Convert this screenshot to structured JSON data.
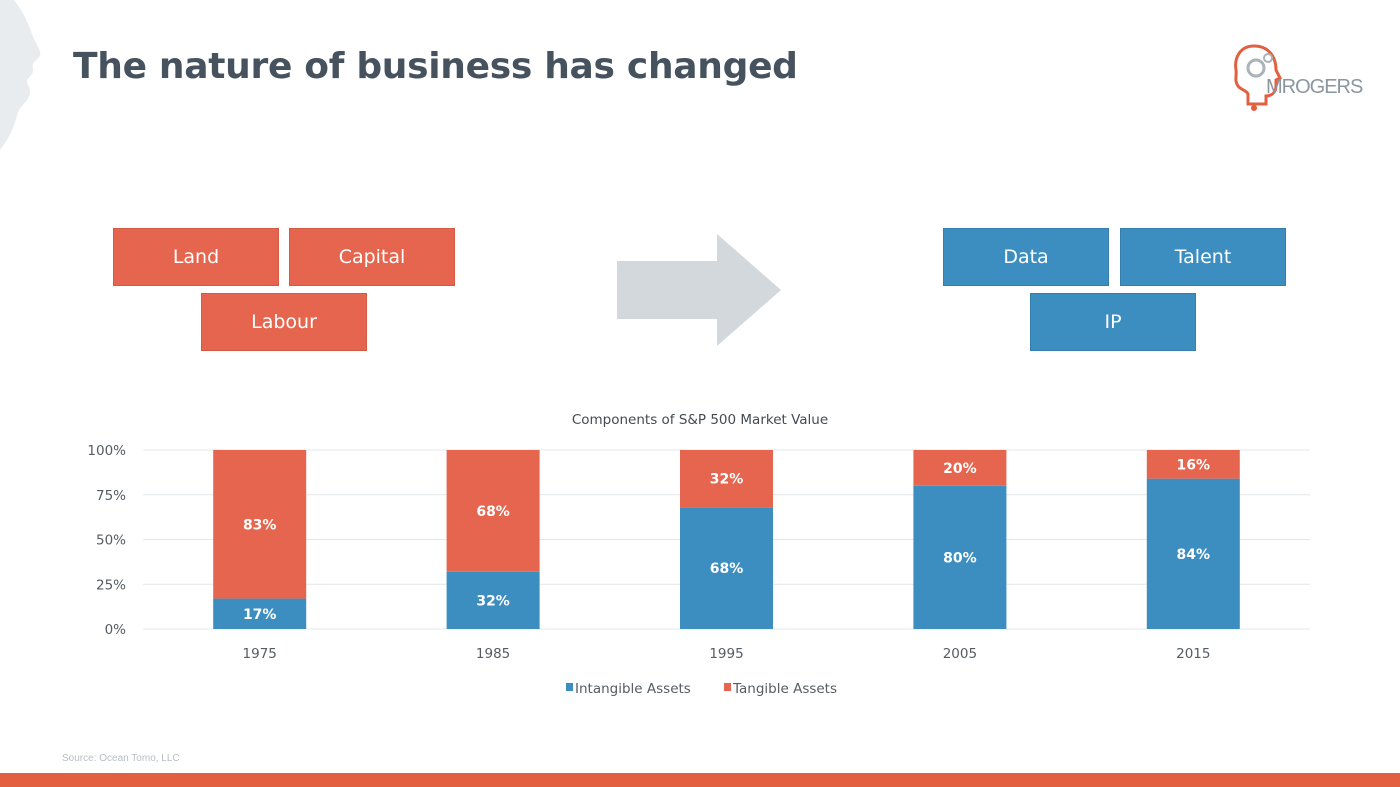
{
  "slide": {
    "title": "The nature of business has changed",
    "logo_text": "MROGERS",
    "source": "Source: Ocean Tomo, LLC"
  },
  "old_factors": [
    "Land",
    "Capital",
    "Labour"
  ],
  "new_factors": [
    "Data",
    "Talent",
    "IP"
  ],
  "colors": {
    "tangible": "#e6654e",
    "intangible": "#3c8ec1",
    "arrow": "#d3d8dd",
    "accent_bar": "#e2603f"
  },
  "chart_data": {
    "type": "bar",
    "stacked": true,
    "title": "Components of S&P 500 Market Value",
    "categories": [
      "1975",
      "1985",
      "1995",
      "2005",
      "2015"
    ],
    "series": [
      {
        "name": "Intangible Assets",
        "values": [
          17,
          32,
          68,
          80,
          84
        ],
        "labels": [
          "17%",
          "32%",
          "68%",
          "80%",
          "84%"
        ]
      },
      {
        "name": "Tangible Assets",
        "values": [
          83,
          68,
          32,
          20,
          16
        ],
        "labels": [
          "83%",
          "68%",
          "32%",
          "20%",
          "16%"
        ]
      }
    ],
    "yticks": [
      "100%",
      "75%",
      "50%",
      "25%",
      "0%"
    ],
    "ylim": [
      0,
      100
    ],
    "grid": true,
    "legend": "bottom"
  }
}
